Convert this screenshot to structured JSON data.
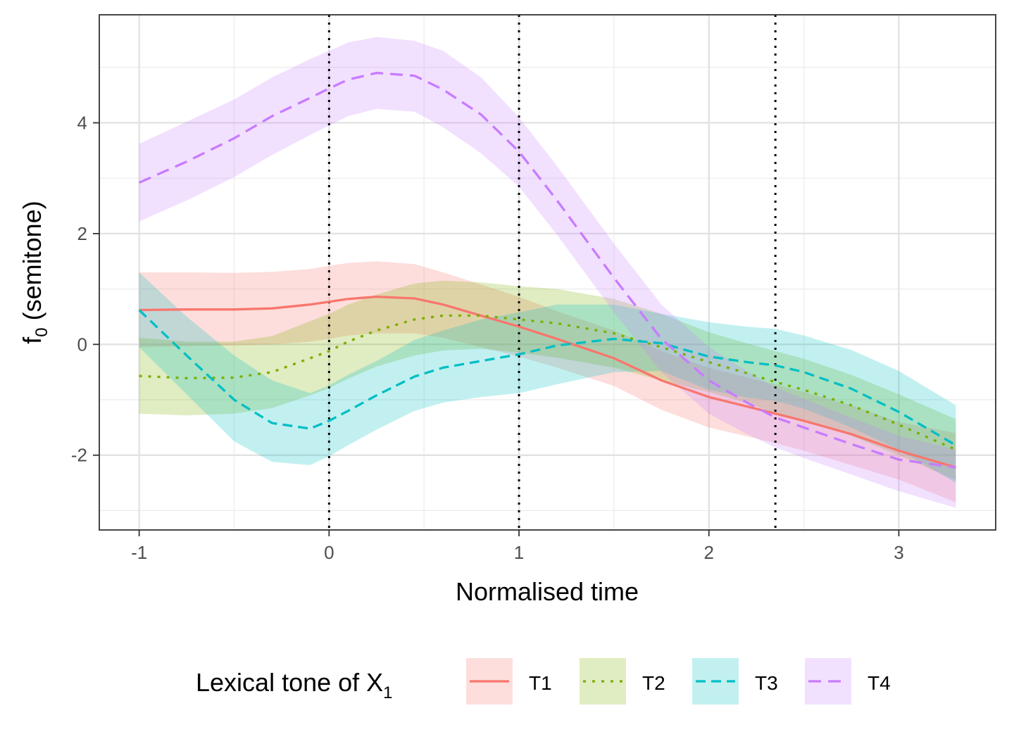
{
  "chart_data": {
    "type": "line",
    "title": "",
    "xlabel": "Normalised time",
    "ylabel_main": "f",
    "ylabel_sub": "0",
    "ylabel_rest": " (semitone)",
    "xlim": [
      -1.21,
      3.51
    ],
    "ylim": [
      -3.35,
      5.95
    ],
    "xticks": [
      -1,
      0,
      1,
      2,
      3
    ],
    "xtick_labels": [
      "-1",
      "0",
      "1",
      "2",
      "3"
    ],
    "yticks": [
      -2,
      0,
      2,
      4
    ],
    "ytick_labels": [
      "-2",
      "0",
      "2",
      "4"
    ],
    "minor_xticks": [
      -0.5,
      0.5,
      1.5,
      2.5
    ],
    "minor_yticks": [
      -3,
      -1,
      1,
      3,
      5
    ],
    "vlines": [
      0,
      1,
      2.35
    ],
    "grid": true,
    "legend": {
      "title_main": "Lexical tone of X",
      "title_sub": "1",
      "position": "bottom"
    },
    "x": [
      -1,
      -0.75,
      -0.5,
      -0.3,
      -0.1,
      0,
      0.1,
      0.25,
      0.45,
      0.6,
      0.8,
      1,
      1.2,
      1.5,
      1.75,
      2,
      2.2,
      2.35,
      2.5,
      2.75,
      3,
      3.3
    ],
    "series": [
      {
        "name": "T1",
        "color": "#F8766D",
        "dash": "",
        "values": [
          0.62,
          0.63,
          0.63,
          0.65,
          0.72,
          0.77,
          0.82,
          0.86,
          0.83,
          0.72,
          0.52,
          0.32,
          0.1,
          -0.25,
          -0.65,
          -0.95,
          -1.12,
          -1.25,
          -1.38,
          -1.62,
          -1.92,
          -2.22
        ],
        "upper": [
          1.3,
          1.3,
          1.29,
          1.31,
          1.36,
          1.42,
          1.47,
          1.5,
          1.45,
          1.3,
          1.08,
          0.86,
          0.6,
          0.25,
          -0.12,
          -0.42,
          -0.6,
          -0.72,
          -0.86,
          -1.1,
          -1.4,
          -1.6
        ],
        "lower": [
          -0.05,
          -0.03,
          -0.02,
          0,
          0.05,
          0.1,
          0.16,
          0.2,
          0.2,
          0.12,
          -0.05,
          -0.22,
          -0.42,
          -0.75,
          -1.18,
          -1.5,
          -1.66,
          -1.78,
          -1.92,
          -2.18,
          -2.44,
          -2.85
        ]
      },
      {
        "name": "T2",
        "color": "#7CAE00",
        "dash": "4,9",
        "values": [
          -0.57,
          -0.61,
          -0.6,
          -0.5,
          -0.25,
          -0.12,
          0.05,
          0.25,
          0.45,
          0.52,
          0.52,
          0.45,
          0.38,
          0.2,
          -0.05,
          -0.32,
          -0.52,
          -0.68,
          -0.82,
          -1.1,
          -1.45,
          -1.9
        ],
        "upper": [
          0.12,
          0.05,
          0.05,
          0.15,
          0.42,
          0.55,
          0.72,
          0.9,
          1.1,
          1.15,
          1.12,
          1.05,
          1.0,
          0.82,
          0.55,
          0.22,
          0.02,
          -0.12,
          -0.26,
          -0.55,
          -0.9,
          -1.35
        ],
        "lower": [
          -1.25,
          -1.28,
          -1.25,
          -1.15,
          -0.92,
          -0.79,
          -0.62,
          -0.4,
          -0.2,
          -0.11,
          -0.08,
          -0.15,
          -0.24,
          -0.42,
          -0.65,
          -0.86,
          -1.06,
          -1.24,
          -1.38,
          -1.65,
          -2.0,
          -2.45
        ]
      },
      {
        "name": "T3",
        "color": "#00BFC4",
        "dash": "14,8",
        "values": [
          0.62,
          -0.2,
          -1.0,
          -1.42,
          -1.52,
          -1.38,
          -1.2,
          -0.92,
          -0.58,
          -0.42,
          -0.3,
          -0.18,
          -0.02,
          0.1,
          0.02,
          -0.22,
          -0.32,
          -0.38,
          -0.5,
          -0.8,
          -1.22,
          -1.82
        ],
        "upper": [
          1.3,
          0.5,
          -0.2,
          -0.65,
          -0.88,
          -0.74,
          -0.55,
          -0.3,
          0.08,
          0.25,
          0.45,
          0.58,
          0.72,
          0.72,
          0.55,
          0.4,
          0.32,
          0.28,
          0.16,
          -0.1,
          -0.48,
          -1.1
        ],
        "lower": [
          -0.05,
          -0.9,
          -1.75,
          -2.12,
          -2.18,
          -2.02,
          -1.82,
          -1.54,
          -1.2,
          -1.05,
          -0.95,
          -0.88,
          -0.72,
          -0.5,
          -0.48,
          -0.82,
          -0.96,
          -1.02,
          -1.16,
          -1.5,
          -1.9,
          -2.5
        ]
      },
      {
        "name": "T4",
        "color": "#C77CFF",
        "dash": "18,10",
        "values": [
          2.92,
          3.3,
          3.72,
          4.12,
          4.45,
          4.62,
          4.78,
          4.9,
          4.85,
          4.6,
          4.15,
          3.48,
          2.6,
          1.2,
          0.1,
          -0.65,
          -1.05,
          -1.32,
          -1.5,
          -1.8,
          -2.08,
          -2.22
        ],
        "upper": [
          3.62,
          4.02,
          4.42,
          4.82,
          5.15,
          5.3,
          5.45,
          5.55,
          5.48,
          5.3,
          4.82,
          4.1,
          3.22,
          1.82,
          0.72,
          -0.05,
          -0.48,
          -0.78,
          -0.98,
          -1.32,
          -1.65,
          -1.9
        ],
        "lower": [
          2.22,
          2.6,
          3.02,
          3.42,
          3.78,
          3.95,
          4.12,
          4.25,
          4.2,
          3.92,
          3.45,
          2.85,
          1.98,
          0.58,
          -0.5,
          -1.25,
          -1.62,
          -1.86,
          -2.05,
          -2.35,
          -2.65,
          -2.95
        ]
      }
    ]
  }
}
